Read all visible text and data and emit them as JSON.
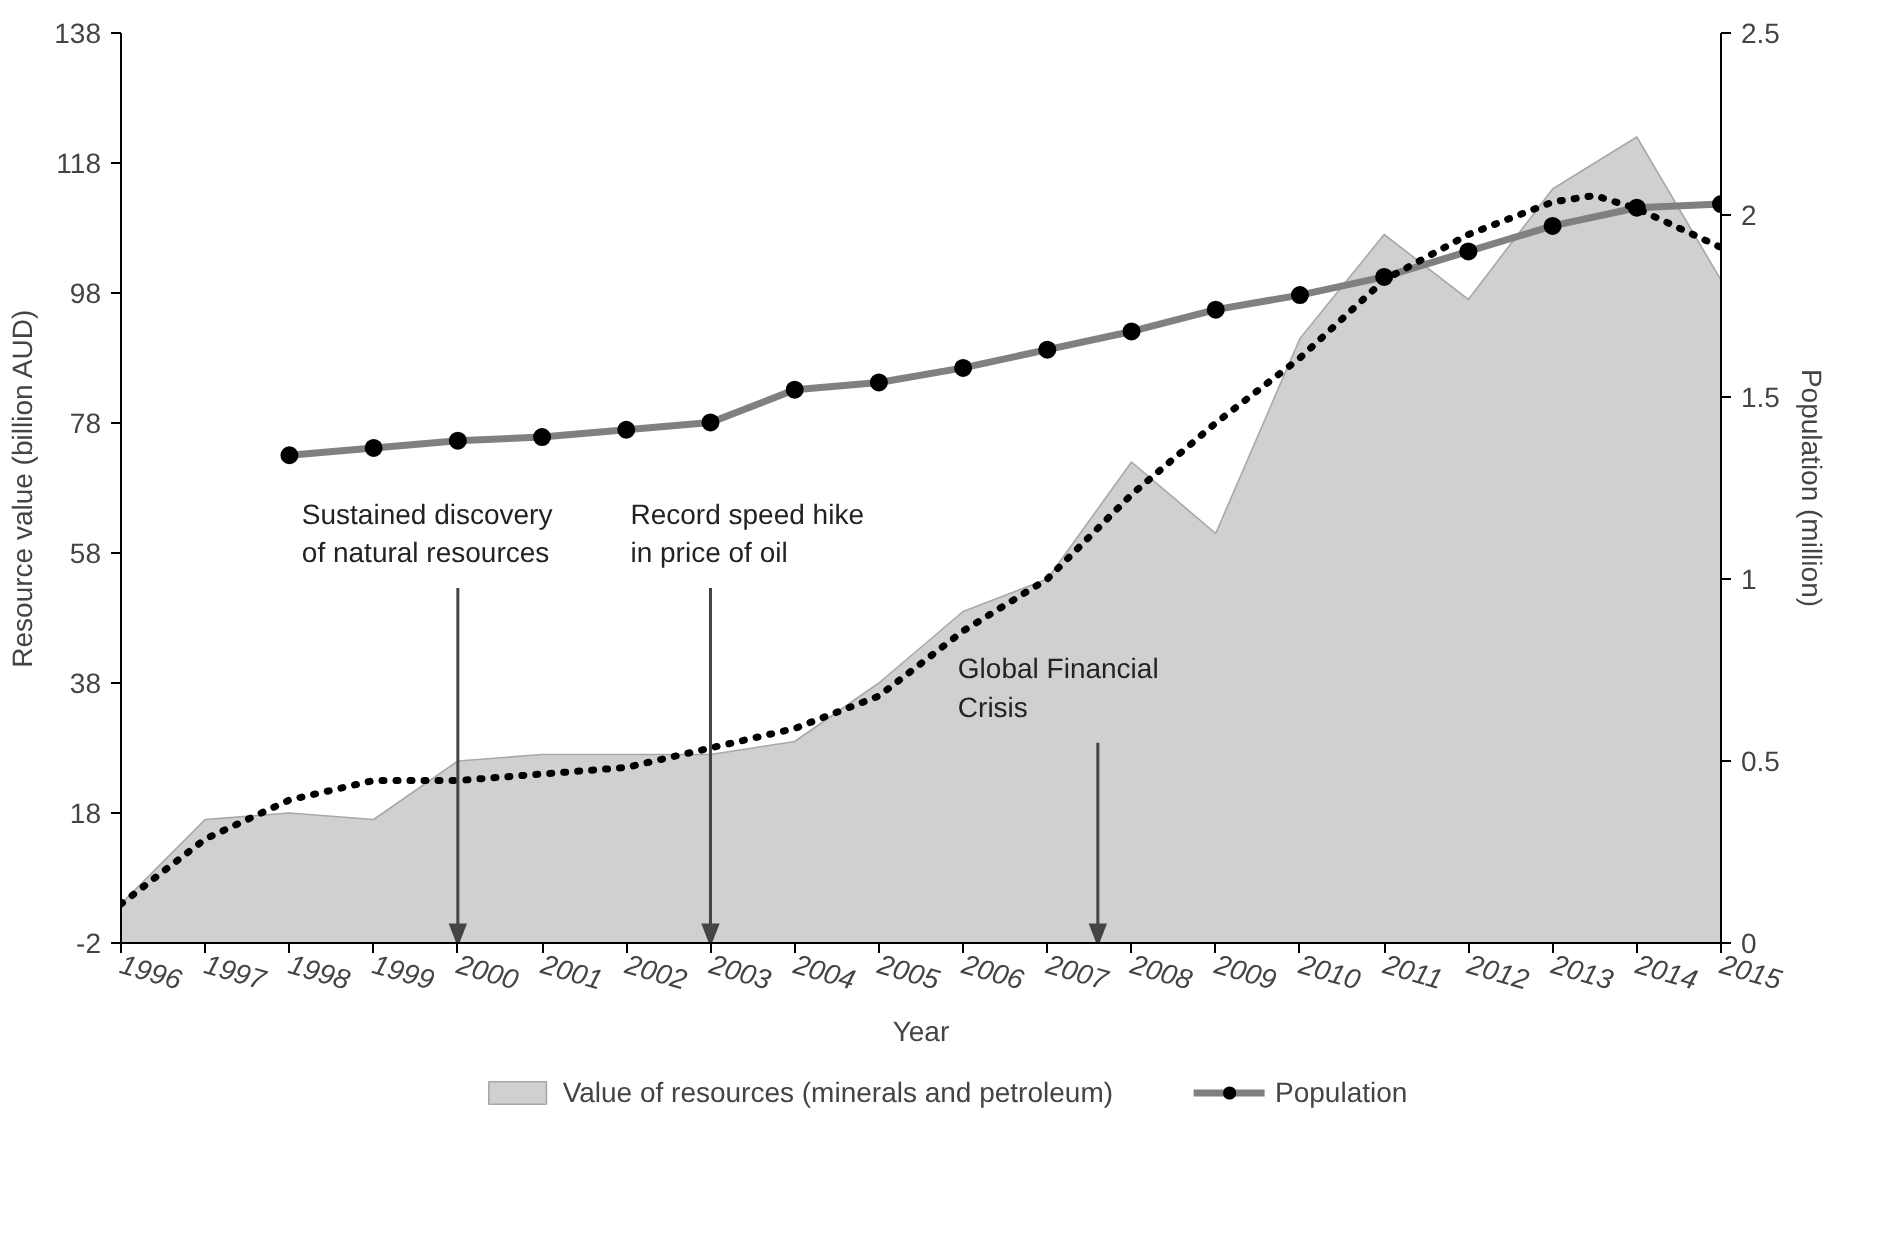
{
  "chart_data": {
    "type": "area",
    "xlabel": "Year",
    "ylabel": "Resource value (billion AUD)",
    "y2label": "Population (million)",
    "x": [
      1996,
      1997,
      1998,
      1999,
      2000,
      2001,
      2002,
      2003,
      2004,
      2005,
      2006,
      2007,
      2008,
      2009,
      2010,
      2011,
      2012,
      2013,
      2014,
      2015
    ],
    "series": [
      {
        "name": "Value of resources (minerals and petroleum)",
        "color": "#d0d0d0",
        "values": [
          4,
          17,
          18,
          17,
          26,
          27,
          27,
          27,
          29,
          38,
          49,
          54,
          72,
          61,
          91,
          107,
          97,
          114,
          122,
          100
        ]
      },
      {
        "name": "Population",
        "type": "line",
        "color": "#808080",
        "axis": "y2",
        "marker": "circle",
        "x": [
          1998,
          1999,
          2000,
          2001,
          2002,
          2003,
          2004,
          2005,
          2006,
          2007,
          2008,
          2009,
          2010,
          2011,
          2012,
          2013,
          2014,
          2015
        ],
        "values": [
          1.34,
          1.36,
          1.38,
          1.39,
          1.41,
          1.43,
          1.52,
          1.54,
          1.58,
          1.63,
          1.68,
          1.74,
          1.78,
          1.83,
          1.9,
          1.97,
          2.02,
          2.03
        ]
      },
      {
        "type": "line",
        "color": "#000000",
        "line_style": "dotted",
        "marker": "none",
        "x": [
          1996,
          1997,
          1998,
          1999,
          2000,
          2001,
          2002,
          2003,
          2004,
          2005,
          2006,
          2007,
          2008,
          2009,
          2010,
          2011,
          2012,
          2013,
          2013.5,
          2014,
          2015
        ],
        "values": [
          4,
          14,
          20,
          23,
          23,
          24,
          25,
          28,
          31,
          36,
          46,
          54,
          67,
          78,
          88,
          100,
          107,
          112,
          113,
          111,
          105
        ]
      }
    ],
    "xlim": [
      1996,
      2015
    ],
    "xticks": [
      1996,
      1997,
      1998,
      1999,
      2000,
      2001,
      2002,
      2003,
      2004,
      2005,
      2006,
      2007,
      2008,
      2009,
      2010,
      2011,
      2012,
      2013,
      2014,
      2015
    ],
    "ylim": [
      -2,
      138
    ],
    "yticks": [
      -2,
      18,
      38,
      58,
      78,
      98,
      118,
      138
    ],
    "y2lim": [
      0,
      2.5
    ],
    "y2ticks": [
      0,
      0.5,
      1,
      1.5,
      2,
      2.5
    ],
    "ref_lines": [
      {
        "axis": "x",
        "value": 2000,
        "label": "Sustained discovery\nof natural resources",
        "color": "#444444"
      },
      {
        "axis": "x",
        "value": 2003,
        "label": "Record speed hike\nin price of oil",
        "color": "#444444"
      },
      {
        "axis": "x",
        "value": 2007.6,
        "label": "Global Financial\nCrisis",
        "color": "#444444"
      }
    ],
    "legend": "bottom",
    "grid": false
  }
}
